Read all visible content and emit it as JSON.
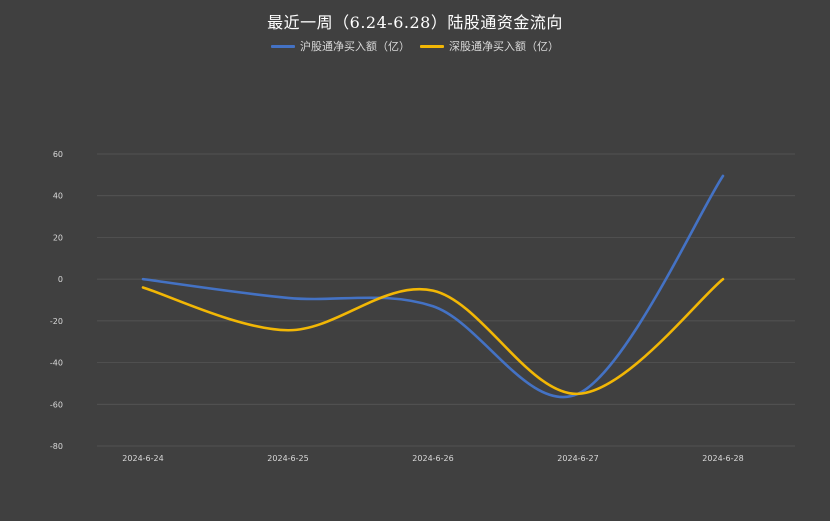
{
  "chart_data": {
    "type": "line",
    "title": "最近一周（6.24-6.28）陆股通资金流向",
    "categories": [
      "2024-6-24",
      "2024-6-25",
      "2024-6-26",
      "2024-6-27",
      "2024-6-28"
    ],
    "series": [
      {
        "name": "沪股通净买入额（亿）",
        "color": "#4472c4",
        "values": [
          0,
          -9,
          -13,
          -55,
          49.5
        ]
      },
      {
        "name": "深股通净买入额（亿）",
        "color": "#f2b705",
        "values": [
          -4,
          -24.5,
          -5.5,
          -55,
          0
        ]
      }
    ],
    "ylim": [
      -80,
      60
    ],
    "yticks": [
      60,
      40,
      20,
      0,
      -20,
      -40,
      -60,
      -80
    ],
    "grid": true,
    "legend_position": "top",
    "smooth": true,
    "colors": {
      "background": "#404040",
      "grid": "#595959",
      "text": "#d9d9d9"
    }
  }
}
